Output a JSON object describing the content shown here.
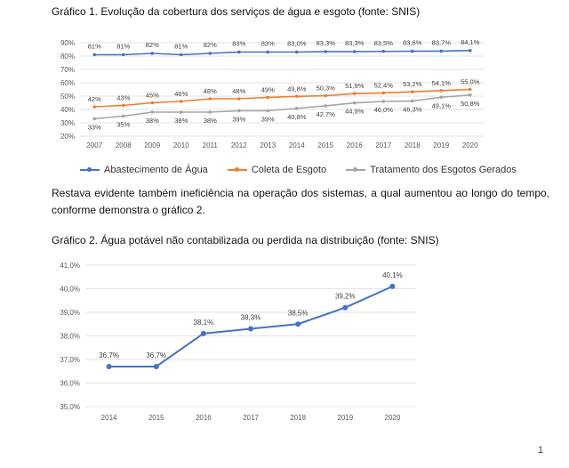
{
  "captions": {
    "chart1": "Gráfico 1. Evolução da cobertura dos serviços de água e esgoto (fonte: SNIS)",
    "chart2": "Gráfico 2. Água potável não contabilizada ou perdida na distribuição (fonte: SNIS)"
  },
  "paragraph": "Restava evidente também ineficiência na operação dos sistemas, a qual aumentou ao longo do tempo, conforme demonstra o gráfico 2.",
  "page_number": "1",
  "colors": {
    "blue": "#4472c4",
    "orange": "#ed7d31",
    "gray": "#a5a5a5",
    "grid": "#e3e3e3",
    "axis_text": "#595959"
  },
  "chart_data": [
    {
      "type": "line",
      "x": [
        "2007",
        "2008",
        "2009",
        "2010",
        "2011",
        "2012",
        "2013",
        "2014",
        "2015",
        "2016",
        "2017",
        "2018",
        "2019",
        "2020"
      ],
      "yticks": [
        "20%",
        "30%",
        "40%",
        "50%",
        "60%",
        "70%",
        "80%",
        "90%"
      ],
      "ylim": [
        20,
        90
      ],
      "grid": true,
      "legend_placement": "bottom",
      "series": [
        {
          "name": "Abastecimento de Água",
          "color": "#4472c4",
          "values": [
            81,
            81,
            82,
            81,
            82,
            83,
            83,
            83.0,
            83.3,
            83.3,
            83.5,
            83.6,
            83.7,
            84.1
          ],
          "labels": [
            "81%",
            "81%",
            "82%",
            "81%",
            "82%",
            "83%",
            "83%",
            "83,0%",
            "83,3%",
            "83,3%",
            "83,5%",
            "83,6%",
            "83,7%",
            "84,1%"
          ]
        },
        {
          "name": "Coleta de Esgoto",
          "color": "#ed7d31",
          "values": [
            42,
            43,
            45,
            46,
            48,
            48,
            49,
            49.8,
            50.3,
            51.9,
            52.4,
            53.2,
            54.1,
            55.0
          ],
          "labels": [
            "42%",
            "43%",
            "45%",
            "46%",
            "48%",
            "48%",
            "49%",
            "49,8%",
            "50,3%",
            "51,9%",
            "52,4%",
            "53,2%",
            "54,1%",
            "55,0%"
          ]
        },
        {
          "name": "Tratamento dos Esgotos Gerados",
          "color": "#a5a5a5",
          "values": [
            33,
            35,
            38,
            38,
            38,
            39,
            39,
            40.8,
            42.7,
            44.9,
            46.0,
            46.3,
            49.1,
            50.8
          ],
          "labels": [
            "33%",
            "35%",
            "38%",
            "38%",
            "38%",
            "39%",
            "39%",
            "40,8%",
            "42,7%",
            "44,9%",
            "46,0%",
            "46,3%",
            "49,1%",
            "50,8%"
          ]
        }
      ]
    },
    {
      "type": "line",
      "x": [
        "2014",
        "2015",
        "2016",
        "2017",
        "2018",
        "2019",
        "2020"
      ],
      "yticks": [
        "35,0%",
        "36,0%",
        "37,0%",
        "38,0%",
        "39,0%",
        "40,0%",
        "41,0%"
      ],
      "ylim": [
        35,
        41
      ],
      "grid": true,
      "series": [
        {
          "color": "#4472c4",
          "values": [
            36.7,
            36.7,
            38.1,
            38.3,
            38.5,
            39.2,
            40.1
          ],
          "labels": [
            "36,7%",
            "36,7%",
            "38,1%",
            "38,3%",
            "38,5%",
            "39,2%",
            "40,1%"
          ]
        }
      ]
    }
  ]
}
